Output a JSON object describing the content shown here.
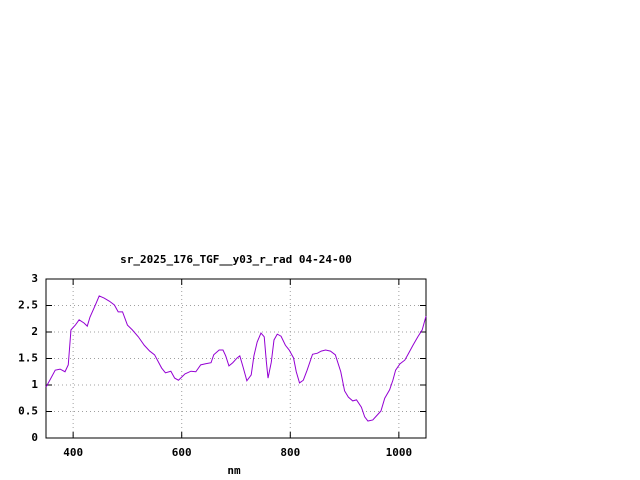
{
  "chart_data": {
    "type": "line",
    "title": "sr_2025_176_TGF__y03_r_rad 04-24-00",
    "x_label": "nm",
    "x": [
      350,
      357,
      367,
      376,
      385,
      391,
      396,
      404,
      411,
      420,
      426,
      431,
      441,
      448,
      457,
      467,
      476,
      483,
      491,
      500,
      509,
      520,
      531,
      541,
      550,
      563,
      570,
      580,
      587,
      594,
      606,
      617,
      626,
      635,
      644,
      654,
      659,
      669,
      676,
      681,
      687,
      694,
      702,
      707,
      713,
      720,
      728,
      733,
      739,
      746,
      752,
      756,
      759,
      765,
      770,
      776,
      783,
      791,
      798,
      806,
      811,
      817,
      824,
      831,
      841,
      850,
      857,
      865,
      874,
      883,
      893,
      900,
      907,
      915,
      922,
      931,
      937,
      943,
      952,
      959,
      967,
      974,
      983,
      989,
      994,
      1002,
      1011,
      1017,
      1026,
      1035,
      1043,
      1050
    ],
    "series": [
      {
        "color": "#9400d3",
        "values": [
          0.96,
          1.09,
          1.28,
          1.3,
          1.25,
          1.38,
          2.04,
          2.13,
          2.23,
          2.17,
          2.11,
          2.28,
          2.51,
          2.68,
          2.64,
          2.58,
          2.51,
          2.38,
          2.38,
          2.13,
          2.04,
          1.91,
          1.75,
          1.64,
          1.57,
          1.32,
          1.23,
          1.26,
          1.13,
          1.09,
          1.21,
          1.26,
          1.25,
          1.38,
          1.4,
          1.42,
          1.57,
          1.66,
          1.66,
          1.55,
          1.36,
          1.42,
          1.51,
          1.55,
          1.34,
          1.08,
          1.19,
          1.55,
          1.81,
          1.98,
          1.91,
          1.43,
          1.13,
          1.43,
          1.85,
          1.96,
          1.92,
          1.75,
          1.66,
          1.51,
          1.25,
          1.04,
          1.09,
          1.28,
          1.58,
          1.6,
          1.64,
          1.66,
          1.64,
          1.57,
          1.25,
          0.89,
          0.77,
          0.7,
          0.72,
          0.58,
          0.4,
          0.32,
          0.34,
          0.42,
          0.51,
          0.75,
          0.91,
          1.09,
          1.28,
          1.4,
          1.47,
          1.58,
          1.75,
          1.91,
          2.04,
          2.3
        ]
      }
    ],
    "xlim": [
      350,
      1050
    ],
    "xticks": [
      400,
      600,
      800,
      1000
    ],
    "ylim": [
      0,
      3
    ],
    "yticks": [
      0,
      0.5,
      1,
      1.5,
      2,
      2.5,
      3
    ],
    "grid": true
  }
}
